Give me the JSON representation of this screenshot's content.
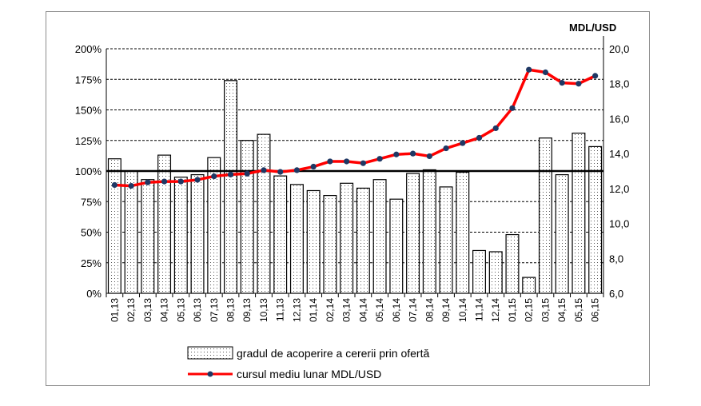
{
  "chart_data": {
    "type": "bar+line",
    "categories": [
      "01,13",
      "02,13",
      "03,13",
      "04,13",
      "05,13",
      "06,13",
      "07,13",
      "08,13",
      "09,13",
      "10,13",
      "11,13",
      "12,13",
      "01,14",
      "02,14",
      "03,14",
      "04,14",
      "05,14",
      "06,14",
      "07,14",
      "08,14",
      "09,14",
      "10,14",
      "11,14",
      "12,14",
      "01,15",
      "02,15",
      "03,15",
      "04,15",
      "05,15",
      "06,15"
    ],
    "series": [
      {
        "name": "gradul de acoperire a cererii prin ofertă",
        "type": "bar",
        "axis": "left",
        "values": [
          110,
          100,
          93,
          113,
          95,
          97,
          111,
          174,
          125,
          130,
          96,
          89,
          84,
          80,
          90,
          86,
          93,
          77,
          98,
          101,
          87,
          99,
          35,
          34,
          48,
          13,
          127,
          97,
          131,
          120
        ],
        "color": "#ffffff"
      },
      {
        "name": "cursul mediu lunar MDL/USD",
        "type": "line",
        "axis": "right",
        "values": [
          12.2,
          12.15,
          12.35,
          12.4,
          12.4,
          12.5,
          12.7,
          12.8,
          12.85,
          13.05,
          12.95,
          13.05,
          13.25,
          13.55,
          13.55,
          13.45,
          13.7,
          13.95,
          14.0,
          13.85,
          14.3,
          14.6,
          14.9,
          15.45,
          16.6,
          18.8,
          18.65,
          18.05,
          18.0,
          18.45
        ],
        "color": "#ff0000",
        "marker_color": "#1f3864"
      }
    ],
    "y_left": {
      "ticks": [
        "0%",
        "25%",
        "50%",
        "75%",
        "100%",
        "125%",
        "150%",
        "175%",
        "200%"
      ],
      "range": [
        0,
        200
      ],
      "reference_line": 100
    },
    "y_right": {
      "ticks": [
        "6,0",
        "8,0",
        "10,0",
        "12,0",
        "14,0",
        "16,0",
        "18,0",
        "20,0"
      ],
      "range": [
        6,
        20
      ],
      "unit_label": "MDL/USD"
    },
    "grid": "horizontal dashed",
    "legend_position": "bottom"
  }
}
